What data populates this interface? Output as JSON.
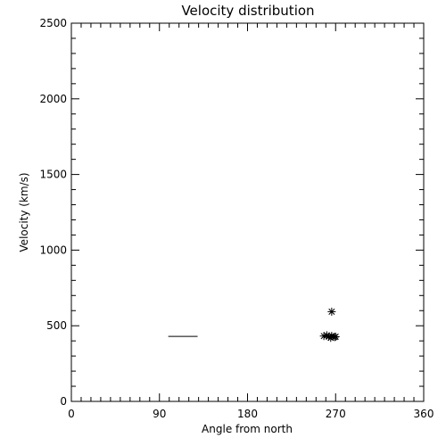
{
  "chart_data": {
    "type": "scatter",
    "title": "Velocity distribution",
    "xlabel": "Angle from north",
    "ylabel": "Velocity (km/s)",
    "xlim": [
      0,
      360
    ],
    "ylim": [
      0,
      2500
    ],
    "xticks": [
      "0",
      "90",
      "180",
      "270",
      "360"
    ],
    "yticks": [
      "0",
      "500",
      "1000",
      "1500",
      "2000",
      "2500"
    ],
    "grid": false,
    "marker": "asterisk",
    "points": [
      {
        "x": 266,
        "y": 593
      },
      {
        "x": 258,
        "y": 432
      },
      {
        "x": 261,
        "y": 437
      },
      {
        "x": 263,
        "y": 428
      },
      {
        "x": 265,
        "y": 420
      },
      {
        "x": 266,
        "y": 433
      },
      {
        "x": 269,
        "y": 425
      },
      {
        "x": 270,
        "y": 428
      }
    ],
    "segments": [
      {
        "x0": 99,
        "x1": 129,
        "y": 430
      }
    ],
    "colors": {
      "axis": "#000000",
      "marks": "#000000",
      "background": "#ffffff"
    }
  }
}
